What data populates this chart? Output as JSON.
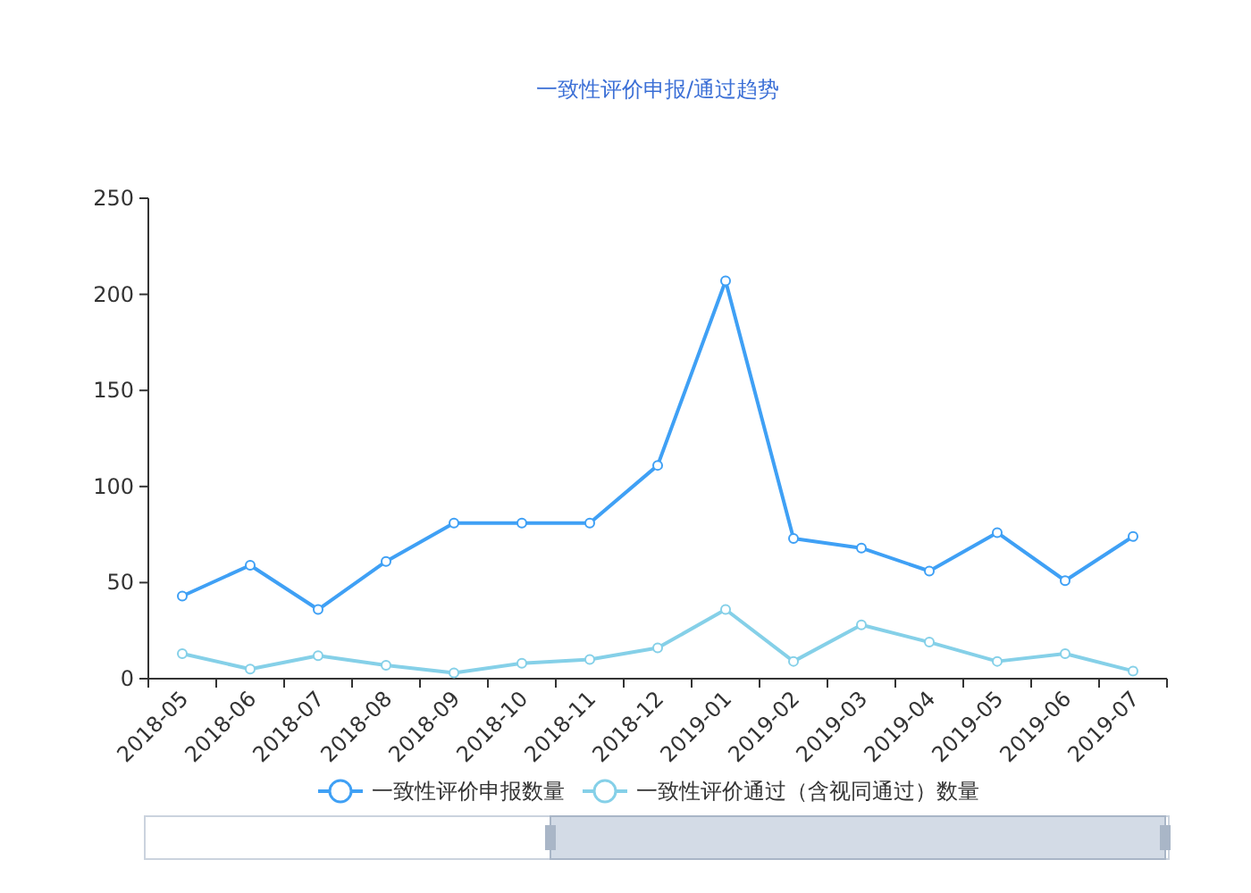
{
  "chart_data": {
    "type": "line",
    "title": "一致性评价申报/通过趋势",
    "categories": [
      "2018-05",
      "2018-06",
      "2018-07",
      "2018-08",
      "2018-09",
      "2018-10",
      "2018-11",
      "2018-12",
      "2019-01",
      "2019-02",
      "2019-03",
      "2019-04",
      "2019-05",
      "2019-06",
      "2019-07"
    ],
    "series": [
      {
        "name": "一致性评价申报数量",
        "color": "#3fa0f5",
        "values": [
          43,
          59,
          36,
          61,
          81,
          81,
          81,
          111,
          207,
          73,
          68,
          56,
          76,
          51,
          74
        ]
      },
      {
        "name": "一致性评价通过（含视同通过）数量",
        "color": "#85d0e8",
        "values": [
          13,
          5,
          12,
          7,
          3,
          8,
          10,
          16,
          36,
          9,
          28,
          19,
          9,
          13,
          4
        ]
      }
    ],
    "ylim": [
      0,
      250
    ],
    "yticks": [
      0,
      50,
      100,
      150,
      200,
      250
    ],
    "grid": false,
    "legend": "bottom",
    "marker": "circle",
    "line_style": "solid"
  }
}
